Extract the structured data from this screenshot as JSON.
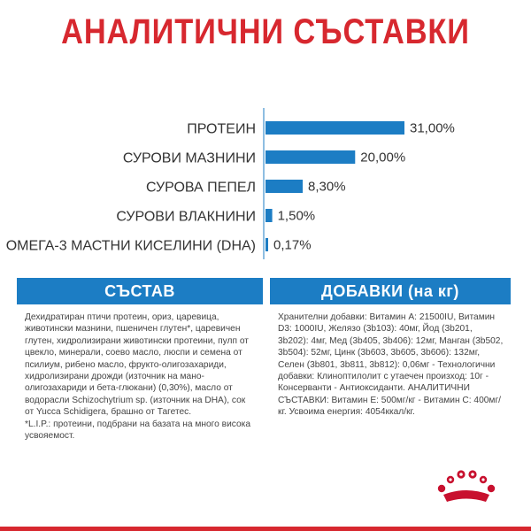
{
  "chart_data": {
    "type": "bar",
    "orientation": "horizontal",
    "title": "АНАЛИТИЧНИ СЪСТАВКИ",
    "categories": [
      "ПРОТЕИН",
      "СУРОВИ МАЗНИНИ",
      "СУРОВА ПЕПЕЛ",
      "СУРОВИ ВЛАКНИНИ",
      "ОМЕГА-3 МАСТНИ КИСЕЛИНИ (DHA)"
    ],
    "values": [
      31.0,
      20.0,
      8.3,
      1.5,
      0.17
    ],
    "value_labels": [
      "31,00%",
      "20,00%",
      "8,30%",
      "1,50%",
      "0,17%"
    ],
    "unit": "%",
    "bar_color": "#1c7dc4",
    "axis_line_color": "#1c7dc4",
    "grid": false,
    "legend": "none"
  },
  "panels": {
    "composition": {
      "heading": "СЪСТАВ",
      "text": "Дехидратиран птичи протеин, ориз, царевица, животински мазнини, пшеничен глутен*, царевичен глутен, хидролизирани животински протеини, пулп от цвекло, минерали, соево масло, люспи и семена от псилиум, рибено масло, фрукто-олигозахариди, хидролизирани дрожди (източник на мано-олигозахариди и бета-глюкани) (0,30%), масло от водорасли Schizochytrium sp. (източник на DHA), сок от Yucca Schidigera, брашно от Тагетес.",
      "footnote": "*L.I.P.: протеини, подбрани на базата на много висока усвояемост."
    },
    "additives": {
      "heading": "ДОБАВКИ (на кг)",
      "text": "Хранителни добавки: Витамин А: 21500IU, Витамин D3: 1000IU, Желязо (3b103): 40мг, Йод (3b201, 3b202): 4мг, Мед (3b405, 3b406): 12мг, Манган (3b502, 3b504): 52мг, Цинк (3b603, 3b605, 3b606): 132мг, Селен (3b801, 3b811, 3b812): 0,06мг - Технологични добавки: Клиноптилолит с утаечен произход: 10г - Консерванти - Антиоксиданти. АНАЛИТИЧНИ СЪСТАВКИ: Витамин Е: 500мг/кг - Витамин С: 400мг/кг. Усвоима енергия: 4054ккал/кг."
    }
  },
  "colors": {
    "title_red": "#d7282f",
    "panel_blue": "#1c7dc4",
    "panel_bg": "#ffffff",
    "logo_red": "#c8102e"
  },
  "logo": {
    "icon": "crown-icon"
  }
}
